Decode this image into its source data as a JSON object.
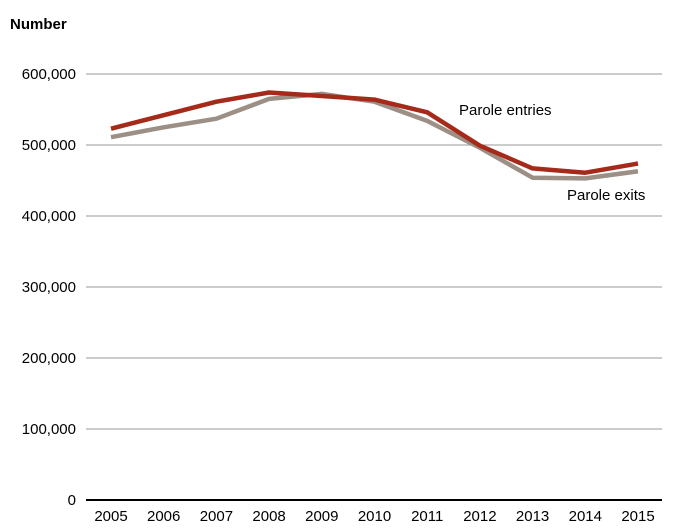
{
  "chart_data": {
    "type": "line",
    "title": "",
    "ylabel": "Number",
    "xlabel": "",
    "x": [
      "2005",
      "2006",
      "2007",
      "2008",
      "2009",
      "2010",
      "2011",
      "2012",
      "2013",
      "2014",
      "2015"
    ],
    "ylim": [
      0,
      600000
    ],
    "yticks": [
      0,
      100000,
      200000,
      300000,
      400000,
      500000,
      600000
    ],
    "ytick_labels": [
      "0",
      "100,000",
      "200,000",
      "300,000",
      "400,000",
      "500,000",
      "600,000"
    ],
    "grid": "horizontal",
    "legend": "direct labels on lines",
    "series": [
      {
        "name": "Parole entries",
        "color": "#a52a1a",
        "values": [
          523000,
          542000,
          561000,
          574000,
          569000,
          564000,
          546000,
          499000,
          467000,
          461000,
          474000
        ]
      },
      {
        "name": "Parole exits",
        "color": "#9c8f86",
        "values": [
          511000,
          525000,
          537000,
          565000,
          572000,
          561000,
          534000,
          496000,
          454000,
          453000,
          463000
        ]
      }
    ]
  }
}
